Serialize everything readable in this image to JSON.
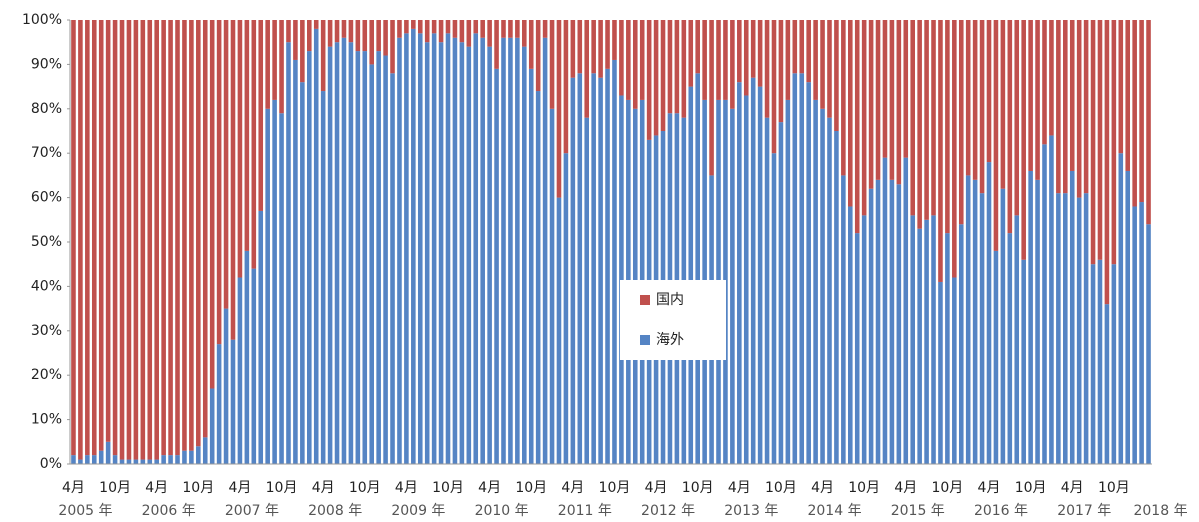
{
  "chart_data": {
    "type": "stacked_bar",
    "categories": [
      "4月",
      null,
      null,
      null,
      null,
      null,
      "10月",
      null,
      null,
      null,
      null,
      null,
      "4月",
      null,
      null,
      null,
      null,
      null,
      "10月",
      null,
      null,
      null,
      null,
      null,
      "4月",
      null,
      null,
      null,
      null,
      null,
      "10月",
      null,
      null,
      null,
      null,
      null,
      "4月",
      null,
      null,
      null,
      null,
      null,
      "10月",
      null,
      null,
      null,
      null,
      null,
      "4月",
      null,
      null,
      null,
      null,
      null,
      "10月",
      null,
      null,
      null,
      null,
      null,
      "4月",
      null,
      null,
      null,
      null,
      null,
      "10月",
      null,
      null,
      null,
      null,
      null,
      "4月",
      null,
      null,
      null,
      null,
      null,
      "10月",
      null,
      null,
      null,
      null,
      null,
      "4月",
      null,
      null,
      null,
      null,
      null,
      "10月",
      null,
      null,
      null,
      null,
      null,
      "4月",
      null,
      null,
      null,
      null,
      null,
      "10月",
      null,
      null,
      null,
      null,
      null,
      "4月",
      null,
      null,
      null,
      null,
      null,
      "10月",
      null,
      null,
      null,
      null,
      null,
      "4月",
      null,
      null,
      null,
      null,
      null,
      "10月",
      null,
      null,
      null,
      null,
      null,
      "4月",
      null,
      null,
      null,
      null,
      null,
      "10月",
      null,
      null,
      null,
      null,
      null,
      "4月",
      null,
      null,
      null,
      null,
      null,
      "10月",
      null,
      null,
      null,
      null,
      null
    ],
    "year_labels": [
      "2005 年",
      null,
      null,
      null,
      null,
      null,
      null,
      null,
      null,
      null,
      null,
      null,
      "2006 年",
      null,
      null,
      null,
      null,
      null,
      null,
      null,
      null,
      null,
      null,
      null,
      "2007 年",
      null,
      null,
      null,
      null,
      null,
      null,
      null,
      null,
      null,
      null,
      null,
      "2008 年",
      null,
      null,
      null,
      null,
      null,
      null,
      null,
      null,
      null,
      null,
      null,
      "2009 年",
      null,
      null,
      null,
      null,
      null,
      null,
      null,
      null,
      null,
      null,
      null,
      "2010 年",
      null,
      null,
      null,
      null,
      null,
      null,
      null,
      null,
      null,
      null,
      null,
      "2011 年",
      null,
      null,
      null,
      null,
      null,
      null,
      null,
      null,
      null,
      null,
      null,
      "2012 年",
      null,
      null,
      null,
      null,
      null,
      null,
      null,
      null,
      null,
      null,
      null,
      "2013 年",
      null,
      null,
      null,
      null,
      null,
      null,
      null,
      null,
      null,
      null,
      null,
      "2014 年",
      null,
      null,
      null,
      null,
      null,
      null,
      null,
      null,
      null,
      null,
      null,
      "2015 年",
      null,
      null,
      null,
      null,
      null,
      null,
      null,
      null,
      null,
      null,
      null,
      "2016 年",
      null,
      null,
      null,
      null,
      null,
      null,
      null,
      null,
      null,
      null,
      null,
      "2017 年",
      null,
      null,
      null,
      null,
      null,
      null,
      null,
      null,
      null,
      null,
      "2018 年"
    ],
    "series": [
      {
        "name": "海外",
        "color": "#5584c4",
        "values": [
          2,
          1,
          2,
          2,
          3,
          5,
          2,
          1,
          1,
          1,
          1,
          1,
          1,
          2,
          2,
          2,
          3,
          3,
          4,
          6,
          17,
          27,
          35,
          28,
          42,
          48,
          44,
          57,
          80,
          82,
          79,
          95,
          91,
          86,
          93,
          98,
          84,
          94,
          95,
          96,
          95,
          93,
          93,
          90,
          93,
          92,
          88,
          96,
          97,
          98,
          97,
          95,
          97,
          95,
          97,
          96,
          95,
          94,
          97,
          96,
          94,
          89,
          96,
          96,
          96,
          94,
          89,
          84,
          96,
          80,
          60,
          70,
          87,
          88,
          78,
          88,
          87,
          89,
          91,
          83,
          82,
          80,
          82,
          73,
          74,
          75,
          79,
          79,
          78,
          85,
          88,
          82,
          65,
          82,
          82,
          80,
          86,
          83,
          87,
          85,
          78,
          70,
          77,
          82,
          88,
          88,
          86,
          82,
          80,
          78,
          75,
          65,
          58,
          52,
          56,
          62,
          64,
          69,
          64,
          63,
          69,
          56,
          53,
          55,
          56,
          41,
          52,
          42,
          54,
          65,
          64,
          61,
          68,
          48,
          62,
          52,
          56,
          46,
          66,
          64,
          72,
          74,
          61,
          61,
          66,
          60,
          61,
          45,
          46,
          36,
          45,
          70,
          66,
          58,
          59,
          54
        ]
      },
      {
        "name": "国内",
        "color": "#c0504d",
        "values": [
          98,
          99,
          98,
          98,
          97,
          95,
          98,
          99,
          99,
          99,
          99,
          99,
          99,
          98,
          98,
          98,
          97,
          97,
          96,
          94,
          83,
          73,
          65,
          72,
          58,
          52,
          56,
          43,
          20,
          18,
          21,
          5,
          9,
          14,
          7,
          2,
          16,
          6,
          5,
          4,
          5,
          7,
          7,
          10,
          7,
          8,
          12,
          4,
          3,
          2,
          3,
          5,
          3,
          5,
          3,
          4,
          5,
          6,
          3,
          4,
          6,
          11,
          4,
          4,
          4,
          6,
          11,
          16,
          4,
          20,
          40,
          30,
          13,
          12,
          22,
          12,
          13,
          11,
          9,
          17,
          18,
          20,
          18,
          27,
          26,
          25,
          21,
          21,
          22,
          15,
          12,
          18,
          35,
          18,
          18,
          20,
          14,
          17,
          13,
          15,
          22,
          30,
          23,
          18,
          12,
          12,
          14,
          18,
          20,
          22,
          25,
          35,
          42,
          48,
          44,
          38,
          36,
          31,
          36,
          37,
          31,
          44,
          47,
          45,
          44,
          59,
          48,
          58,
          46,
          35,
          36,
          39,
          32,
          52,
          38,
          48,
          44,
          54,
          34,
          36,
          28,
          26,
          39,
          39,
          34,
          40,
          39,
          55,
          54,
          64,
          55,
          30,
          34,
          42,
          41,
          46
        ]
      }
    ],
    "ylim": [
      0,
      100
    ],
    "yticks": [
      {
        "value": 0,
        "label": "0%"
      },
      {
        "value": 10,
        "label": "10%"
      },
      {
        "value": 20,
        "label": "20%"
      },
      {
        "value": 30,
        "label": "30%"
      },
      {
        "value": 40,
        "label": "40%"
      },
      {
        "value": 50,
        "label": "50%"
      },
      {
        "value": 60,
        "label": "60%"
      },
      {
        "value": 70,
        "label": "70%"
      },
      {
        "value": 80,
        "label": "80%"
      },
      {
        "value": 90,
        "label": "90%"
      },
      {
        "value": 100,
        "label": "100%"
      }
    ],
    "legend": "center"
  }
}
